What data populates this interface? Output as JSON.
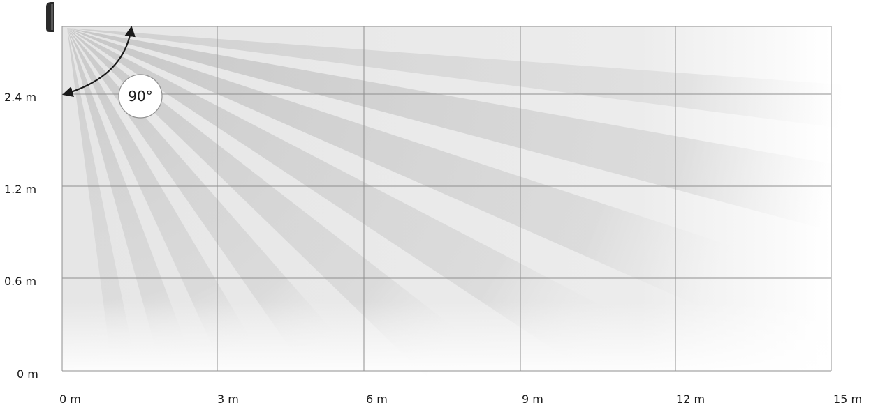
{
  "diagram": {
    "x_ticks": [
      "0 m",
      "3 m",
      "6 m",
      "9 m",
      "12 m",
      "15 m"
    ],
    "y_ticks": [
      "0 m",
      "0.6 m",
      "1.2 m",
      "2.4 m"
    ],
    "angle_label": "90°"
  },
  "colors": {
    "beam": "#c4c4c4",
    "zone": "#ececec",
    "grid": "#8f8f8f",
    "sensor": "#2a2a2a",
    "arrow": "#1a1a1a"
  }
}
